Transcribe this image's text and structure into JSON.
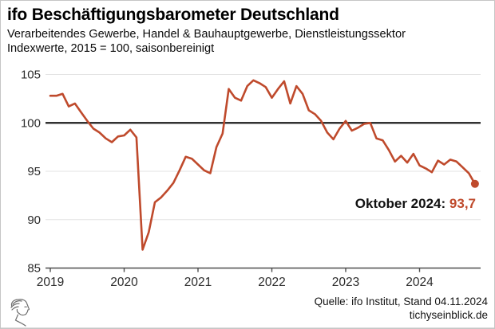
{
  "header": {
    "title": "ifo Beschäftigungsbarometer Deutschland",
    "subtitle1": "Verarbeitendes Gewerbe, Handel & Bauhauptgewerbe, Dienstleistungssektor",
    "subtitle2": "Indexwerte, 2015 = 100, saisonbereinigt"
  },
  "chart_data": {
    "type": "line",
    "series_name": "ifo Beschäftigungsbarometer Deutschland",
    "x_monthly_from": "2019-01",
    "x_monthly_to": "2024-10",
    "values": [
      102.8,
      102.8,
      103.0,
      101.7,
      102.0,
      101.1,
      100.2,
      99.4,
      99.0,
      98.4,
      98.0,
      98.6,
      98.7,
      99.3,
      98.5,
      86.9,
      88.7,
      91.8,
      92.3,
      93.0,
      93.8,
      95.1,
      96.5,
      96.3,
      95.7,
      95.1,
      94.8,
      97.5,
      98.9,
      103.5,
      102.6,
      102.3,
      103.8,
      104.4,
      104.1,
      103.7,
      102.6,
      103.5,
      104.3,
      102.0,
      103.8,
      103.0,
      101.3,
      100.9,
      100.2,
      99.0,
      98.3,
      99.4,
      100.2,
      99.2,
      99.5,
      99.9,
      100.0,
      98.4,
      98.2,
      97.2,
      96.0,
      96.6,
      95.9,
      96.8,
      95.6,
      95.3,
      94.9,
      96.1,
      95.7,
      96.2,
      96.0,
      95.4,
      94.8,
      93.7
    ],
    "ylim": [
      85,
      105.6
    ],
    "yticks": [
      85,
      90,
      95,
      100,
      105
    ],
    "xticks": [
      2019,
      2020,
      2021,
      2022,
      2023,
      2024
    ],
    "baseline": 100,
    "grid": "horizontal",
    "legend": "none",
    "line_color": "#bf4a2c",
    "last_point": {
      "label": "Oktober 2024",
      "value_display": "93,7",
      "value": 93.7
    }
  },
  "annotation": {
    "label": "Oktober 2024:",
    "value": "93,7"
  },
  "footer": {
    "source": "Quelle: ifo Institut, Stand 04.11.2024",
    "site": "tichyseinblick.de"
  },
  "colors": {
    "line": "#bf4a2c",
    "baseline_100": "#1f1f1f",
    "axis": "#4d4d4d",
    "grid": "#e3e3e3",
    "tick_text": "#2b2b2b",
    "background": "#ffffff"
  }
}
